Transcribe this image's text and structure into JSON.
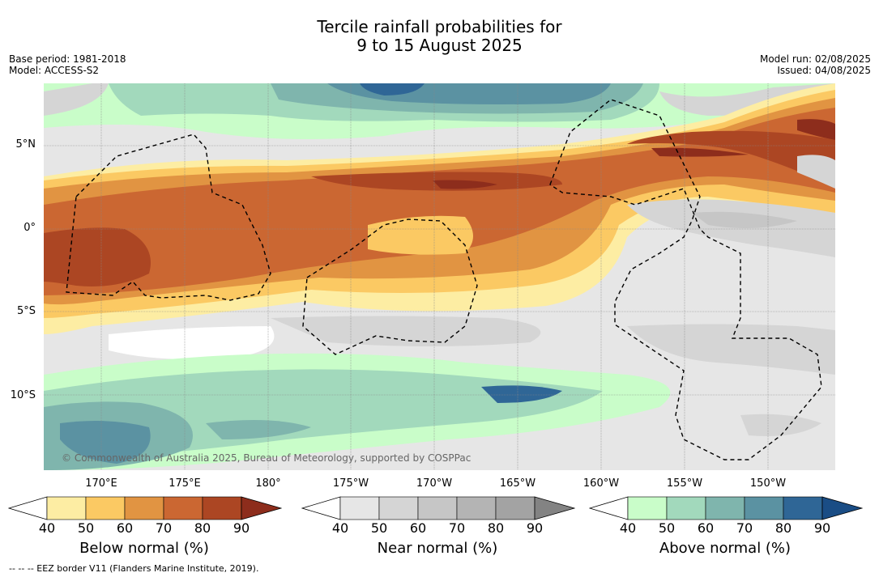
{
  "title_line1": "Tercile rainfall probabilities for",
  "title_line2": "9 to 15 August 2025",
  "base_period": "Base period: 1981-2018",
  "model": "Model: ACCESS-S2",
  "model_run": "Model run: 02/08/2025",
  "issued": "Issued: 04/08/2025",
  "lat_labels": [
    "5°N",
    "0°",
    "5°S",
    "10°S"
  ],
  "lon_labels": [
    "170°E",
    "175°E",
    "180°",
    "175°W",
    "170°W",
    "165°W",
    "160°W",
    "155°W",
    "150°W"
  ],
  "copyright": "© Commonwealth of Australia 2025, Bureau of Meteorology, supported by COSPPac",
  "legends": [
    {
      "title": "Below normal (%)",
      "ticks": [
        "40",
        "50",
        "60",
        "70",
        "80",
        "90"
      ],
      "colors": [
        "#ffffff",
        "#fdeda3",
        "#fbc963",
        "#e19442",
        "#cb6732",
        "#ac4623",
        "#8d2d1c"
      ]
    },
    {
      "title": "Near normal (%)",
      "ticks": [
        "40",
        "50",
        "60",
        "70",
        "80",
        "90"
      ],
      "colors": [
        "#ffffff",
        "#e6e6e6",
        "#d5d5d5",
        "#c6c6c6",
        "#b4b4b4",
        "#a3a3a3",
        "#838383"
      ]
    },
    {
      "title": "Above normal (%)",
      "ticks": [
        "40",
        "50",
        "60",
        "70",
        "80",
        "90"
      ],
      "colors": [
        "#ffffff",
        "#c9fdc9",
        "#a2d9bc",
        "#7fb5ad",
        "#5b92a2",
        "#2f6696",
        "#1a4d85"
      ]
    }
  ],
  "eez_note": "-- -- -- EEZ border V11 (Flanders Marine Institute, 2019)."
}
